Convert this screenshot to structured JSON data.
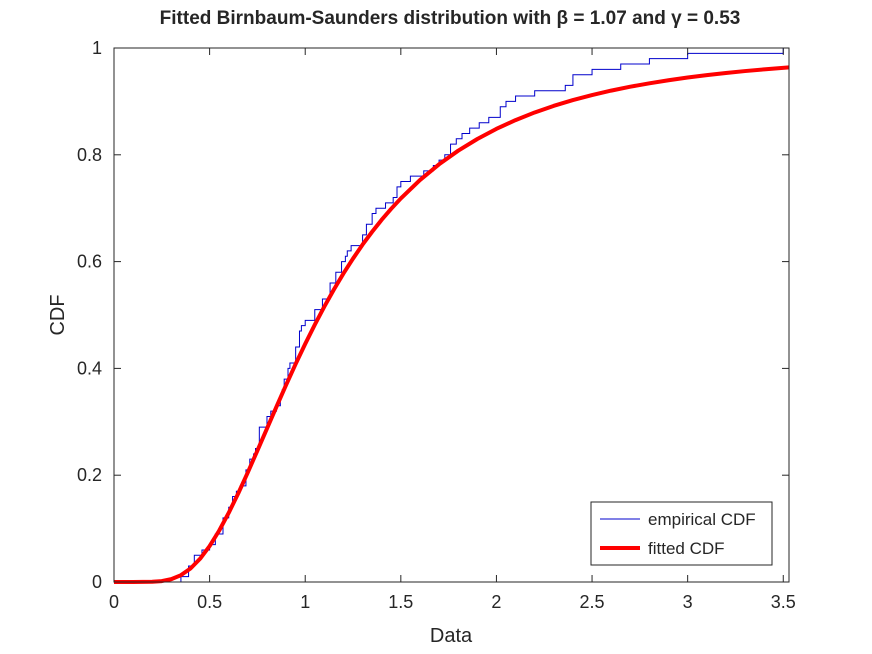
{
  "chart_data": {
    "type": "line",
    "title": "Fitted Birnbaum-Saunders distribution with β = 1.07 and γ = 0.53",
    "xlabel": "Data",
    "ylabel": "CDF",
    "xlim": [
      0,
      3.53
    ],
    "ylim": [
      0,
      1
    ],
    "xticks": [
      "0",
      "0.5",
      "1",
      "1.5",
      "2",
      "2.5",
      "3",
      "3.5"
    ],
    "yticks": [
      "0",
      "0.2",
      "0.4",
      "0.6",
      "0.8",
      "1"
    ],
    "grid": false,
    "legend_position": "bottom-right",
    "fitted_params": {
      "beta": 1.07,
      "gamma": 0.53
    },
    "series": [
      {
        "name": "empirical CDF",
        "style": "stairs",
        "color": "#0000cc",
        "x": [
          0.35,
          0.39,
          0.42,
          0.46,
          0.5,
          0.53,
          0.57,
          0.6,
          0.62,
          0.64,
          0.66,
          0.69,
          0.71,
          0.73,
          0.74,
          0.76,
          0.8,
          0.82,
          0.85,
          0.87,
          0.88,
          0.89,
          0.91,
          0.92,
          0.95,
          0.97,
          0.98,
          1.0,
          1.05,
          1.09,
          1.13,
          1.16,
          1.19,
          1.21,
          1.22,
          1.24,
          1.3,
          1.32,
          1.35,
          1.37,
          1.42,
          1.46,
          1.48,
          1.5,
          1.55,
          1.62,
          1.67,
          1.7,
          1.73,
          1.76,
          1.79,
          1.82,
          1.86,
          1.91,
          1.96,
          2.02,
          2.05,
          2.1,
          2.2,
          2.36,
          2.4,
          2.5,
          2.65,
          2.8,
          3.0,
          3.5
        ],
        "y": [
          0.01,
          0.03,
          0.05,
          0.06,
          0.07,
          0.09,
          0.12,
          0.14,
          0.16,
          0.17,
          0.18,
          0.21,
          0.23,
          0.24,
          0.25,
          0.29,
          0.31,
          0.32,
          0.33,
          0.35,
          0.36,
          0.38,
          0.4,
          0.41,
          0.44,
          0.47,
          0.48,
          0.49,
          0.51,
          0.53,
          0.56,
          0.58,
          0.6,
          0.61,
          0.62,
          0.63,
          0.65,
          0.67,
          0.69,
          0.7,
          0.71,
          0.72,
          0.74,
          0.75,
          0.76,
          0.77,
          0.78,
          0.79,
          0.8,
          0.82,
          0.83,
          0.84,
          0.85,
          0.86,
          0.87,
          0.89,
          0.9,
          0.91,
          0.92,
          0.93,
          0.95,
          0.96,
          0.97,
          0.98,
          0.99,
          1.0
        ]
      },
      {
        "name": "fitted CDF",
        "style": "line",
        "color": "#ff0000",
        "x": [
          0,
          0.1,
          0.2,
          0.25,
          0.3,
          0.35,
          0.4,
          0.45,
          0.5,
          0.55,
          0.6,
          0.65,
          0.7,
          0.75,
          0.8,
          0.85,
          0.9,
          0.95,
          1.0,
          1.05,
          1.1,
          1.15,
          1.2,
          1.25,
          1.3,
          1.35,
          1.4,
          1.45,
          1.5,
          1.6,
          1.7,
          1.8,
          1.9,
          2.0,
          2.1,
          2.2,
          2.3,
          2.4,
          2.5,
          2.6,
          2.7,
          2.8,
          2.9,
          3.0,
          3.1,
          3.2,
          3.3,
          3.4,
          3.53
        ],
        "y": [
          0,
          0,
          0.0004,
          0.0017,
          0.0054,
          0.0128,
          0.0253,
          0.0435,
          0.0673,
          0.0962,
          0.1295,
          0.1662,
          0.2054,
          0.2461,
          0.2874,
          0.3286,
          0.369,
          0.4083,
          0.4459,
          0.4818,
          0.5158,
          0.5478,
          0.5778,
          0.6057,
          0.6318,
          0.6559,
          0.6784,
          0.6991,
          0.7183,
          0.7527,
          0.7822,
          0.8077,
          0.8296,
          0.8486,
          0.865,
          0.8793,
          0.8917,
          0.9025,
          0.9119,
          0.9202,
          0.9275,
          0.9339,
          0.9396,
          0.9447,
          0.9492,
          0.9532,
          0.9568,
          0.96,
          0.9637
        ]
      }
    ]
  }
}
